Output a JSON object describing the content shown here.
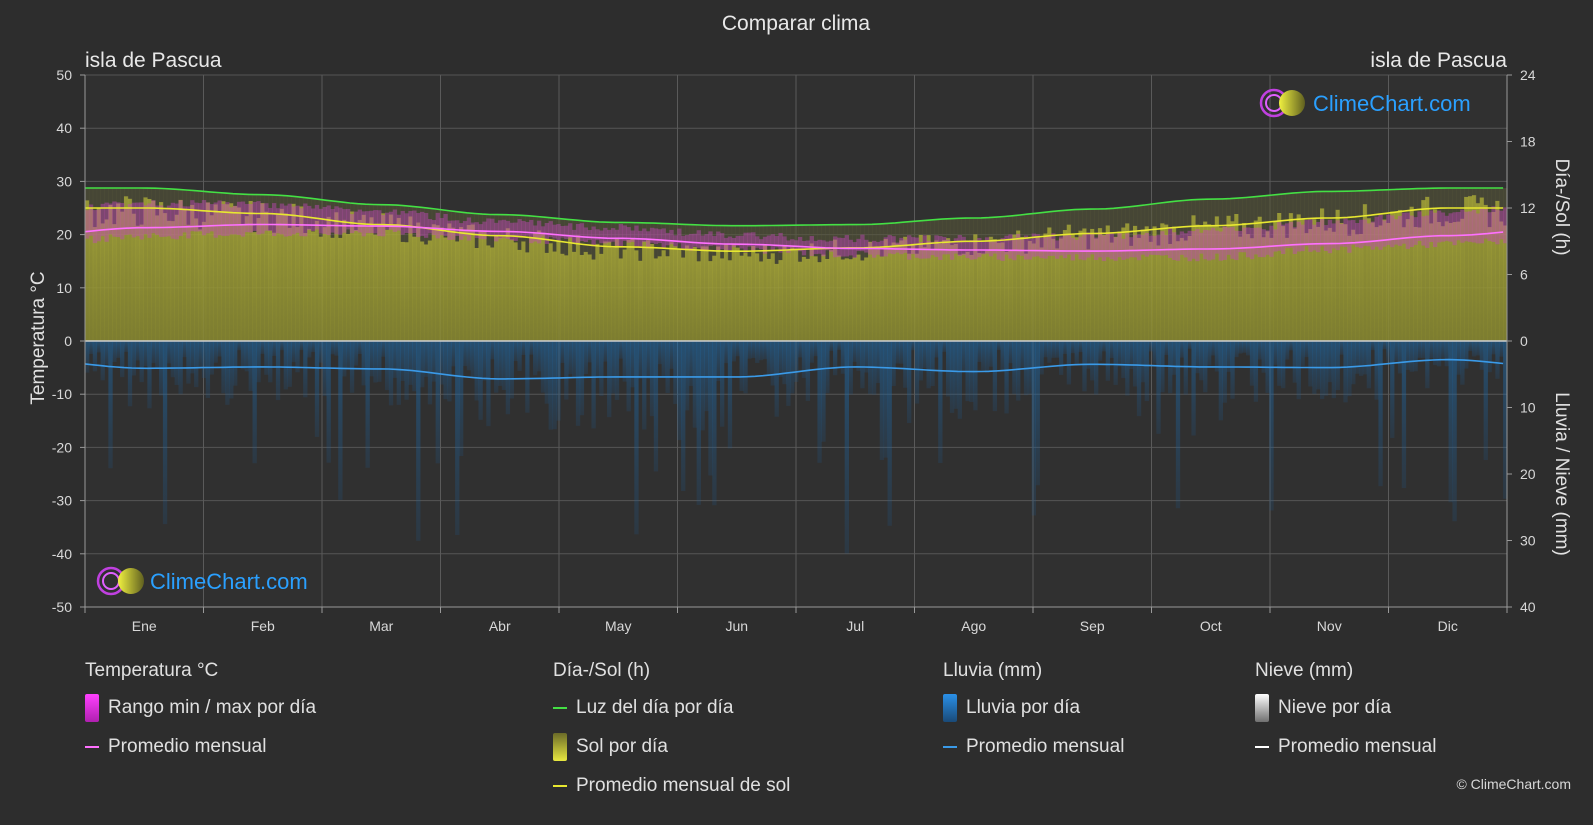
{
  "title": "Comparar clima",
  "location_left": "isla de Pascua",
  "location_right": "isla de Pascua",
  "brand": "ClimeChart.com",
  "copyright": "© ClimeChart.com",
  "colors": {
    "background": "#2d2d2d",
    "daylight": "#44e044",
    "sunshine_avg": "#e8e830",
    "sunshine_fill": "#9a9a2c",
    "temp_range": "#d84fd0",
    "temp_avg": "#ff70ff",
    "rain": "#2a8ad8",
    "rain_avg": "#3a9ae8",
    "snow": "#ffffff",
    "brand_text": "#2aa0ff"
  },
  "chart_data": {
    "type": "line",
    "x_labels": [
      "Ene",
      "Feb",
      "Mar",
      "Abr",
      "May",
      "Jun",
      "Jul",
      "Ago",
      "Sep",
      "Oct",
      "Nov",
      "Dic"
    ],
    "left_axis": {
      "label": "Temperatura °C",
      "ticks": [
        "50",
        "40",
        "30",
        "20",
        "10",
        "0",
        "-10",
        "-20",
        "-30",
        "-40",
        "-50"
      ],
      "ylim": [
        -50,
        50
      ]
    },
    "right_axis_top": {
      "label": "Día-/Sol (h)",
      "ticks": [
        "24",
        "18",
        "12",
        "6",
        "0"
      ],
      "ylim": [
        0,
        24
      ]
    },
    "right_axis_bottom": {
      "label": "Lluvia / Nieve (mm)",
      "ticks": [
        "0",
        "10",
        "20",
        "30",
        "40"
      ],
      "ylim": [
        0,
        40
      ]
    },
    "grid": true,
    "series": {
      "daylight_hours": [
        13.8,
        13.2,
        12.3,
        11.4,
        10.7,
        10.4,
        10.5,
        11.1,
        11.9,
        12.8,
        13.5,
        13.8
      ],
      "sunshine_avg_hours": [
        12.0,
        11.5,
        10.5,
        9.5,
        8.5,
        8.1,
        8.4,
        9.0,
        9.7,
        10.4,
        11.1,
        12.0
      ],
      "temp_avg_c": [
        21.3,
        21.9,
        21.6,
        20.6,
        19.3,
        18.2,
        17.4,
        17.1,
        16.9,
        17.3,
        18.3,
        19.8
      ],
      "temp_max_c": [
        26.5,
        26.5,
        25.0,
        23.0,
        22.0,
        20.5,
        20.0,
        20.0,
        20.5,
        21.5,
        23.0,
        25.0
      ],
      "temp_min_c": [
        19.0,
        19.5,
        19.5,
        18.5,
        17.5,
        16.5,
        15.5,
        15.0,
        15.0,
        15.0,
        16.5,
        17.5
      ],
      "rain_avg_mm": [
        4.1,
        3.9,
        4.2,
        5.7,
        5.4,
        5.4,
        3.9,
        4.6,
        3.5,
        3.9,
        4.0,
        2.8
      ],
      "snow_avg_mm": [
        0,
        0,
        0,
        0,
        0,
        0,
        0,
        0,
        0,
        0,
        0,
        0
      ]
    }
  },
  "legend": {
    "temperature": {
      "header": "Temperatura °C",
      "range": "Rango min / max por día",
      "avg": "Promedio mensual"
    },
    "daysun": {
      "header": "Día-/Sol (h)",
      "daylight": "Luz del día por día",
      "sun": "Sol por día",
      "sun_avg": "Promedio mensual de sol"
    },
    "rain": {
      "header": "Lluvia (mm)",
      "per_day": "Lluvia por día",
      "avg": "Promedio mensual"
    },
    "snow": {
      "header": "Nieve (mm)",
      "per_day": "Nieve por día",
      "avg": "Promedio mensual"
    }
  }
}
